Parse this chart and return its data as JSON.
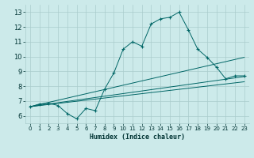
{
  "title": "",
  "xlabel": "Humidex (Indice chaleur)",
  "ylabel": "",
  "bg_color": "#cceaea",
  "grid_color": "#aacccc",
  "line_color": "#006666",
  "xlim": [
    -0.5,
    23.5
  ],
  "ylim": [
    5.5,
    13.5
  ],
  "xticks": [
    0,
    1,
    2,
    3,
    4,
    5,
    6,
    7,
    8,
    9,
    10,
    11,
    12,
    13,
    14,
    15,
    16,
    17,
    18,
    19,
    20,
    21,
    22,
    23
  ],
  "yticks": [
    6,
    7,
    8,
    9,
    10,
    11,
    12,
    13
  ],
  "line1_x": [
    0,
    1,
    2,
    3,
    4,
    5,
    6,
    7,
    8,
    9,
    10,
    11,
    12,
    13,
    14,
    15,
    16,
    17,
    18,
    19,
    20,
    21,
    22,
    23
  ],
  "line1_y": [
    6.6,
    6.8,
    6.85,
    6.7,
    6.15,
    5.8,
    6.5,
    6.35,
    7.8,
    8.9,
    10.5,
    11.0,
    10.7,
    12.2,
    12.55,
    12.65,
    13.0,
    11.8,
    10.5,
    9.95,
    9.3,
    8.5,
    8.7,
    8.7
  ],
  "line2_x": [
    0,
    23
  ],
  "line2_y": [
    6.62,
    9.95
  ],
  "line3_x": [
    0,
    23
  ],
  "line3_y": [
    6.62,
    8.65
  ],
  "line4_x": [
    0,
    23
  ],
  "line4_y": [
    6.62,
    8.3
  ]
}
